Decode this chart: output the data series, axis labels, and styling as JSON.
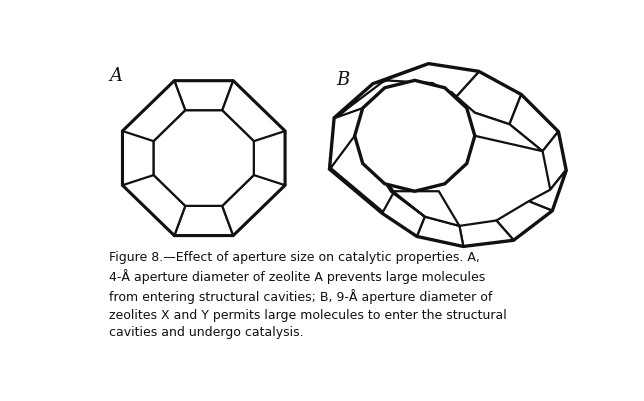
{
  "label_A": "A",
  "label_B": "B",
  "bg_color": "#ffffff",
  "line_color": "#111111",
  "line_width": 1.6,
  "caption_lines": [
    "Figure 8.—Effect of aperture size on catalytic properties. A,",
    "4-Å aperture diameter of zeolite A prevents large molecules",
    "from entering structural cavities; B, 9-Å aperture diameter of",
    "zeolites X and Y permits large molecules to enter the structural",
    "cavities and undergo catalysis."
  ],
  "caption_bold_words": [
    "Figure",
    "8.—Effect",
    "of",
    "aperture",
    "size",
    "on",
    "catalytic",
    "4-Å",
    "aperture",
    "diameter",
    "of",
    "zeolite",
    "A",
    "prevents",
    "large",
    "from",
    "entering",
    "structural",
    "cavities;",
    "B,",
    "9-Å",
    "aperture",
    "diameter",
    "zeolites",
    "X",
    "and",
    "Y",
    "permits",
    "large",
    "cavities",
    "and",
    "undergo",
    "catalysis."
  ]
}
